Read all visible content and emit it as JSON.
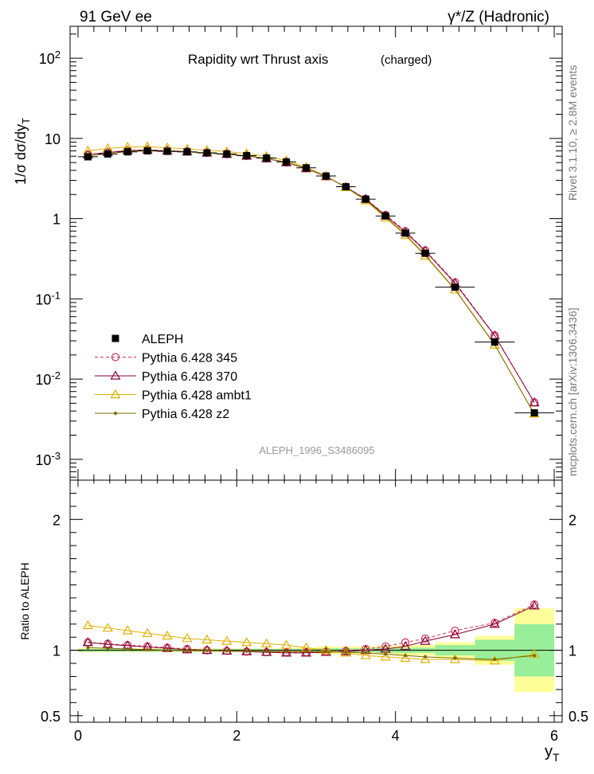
{
  "header": {
    "left": "91 GeV ee",
    "right": "γ*/Z (Hadronic)",
    "side_rivet": "Rivet 3.1.10, ≥ 2.8M events",
    "side_mcplots": "mcplots.cern.ch [arXiv:1306.3436]"
  },
  "plot": {
    "title": "Rapidity wrt Thrust axis",
    "subtitle": "(charged)",
    "watermark": "ALEPH_1996_S3486095",
    "ylabel_main": "1/σ dσ/dy_T",
    "ylabel_ratio": "Ratio to ALEPH",
    "xlabel": "y_T"
  },
  "axes": {
    "x_range": [
      -0.1,
      6.1
    ],
    "x_ticks": [
      "0",
      "2",
      "4",
      "6"
    ],
    "main_y_log_range": [
      0.00055,
      250
    ],
    "main_y_ticks": [
      "10^-3",
      "10^-2",
      "10^-1",
      "1",
      "10",
      "10^2"
    ],
    "ratio_y_range": [
      0.45,
      2.3
    ],
    "ratio_y_ticks": [
      "0.5",
      "1",
      "2"
    ]
  },
  "legend": {
    "entries": [
      {
        "label": "ALEPH",
        "marker": "filled-square",
        "color": "#000000"
      },
      {
        "label": "Pythia 6.428 345",
        "marker": "open-circle-dashed",
        "color": "#cc3355"
      },
      {
        "label": "Pythia 6.428 370",
        "marker": "open-triangle",
        "color": "#880033"
      },
      {
        "label": "Pythia 6.428 ambt1",
        "marker": "open-triangle",
        "color": "#e0b000"
      },
      {
        "label": "Pythia 6.428 z2",
        "marker": "small-dot",
        "color": "#7a6a00"
      }
    ]
  },
  "chart_data": {
    "type": "line",
    "log_y": true,
    "x": [
      0.125,
      0.375,
      0.625,
      0.875,
      1.125,
      1.375,
      1.625,
      1.875,
      2.125,
      2.375,
      2.625,
      2.875,
      3.125,
      3.375,
      3.625,
      3.875,
      4.125,
      4.375,
      4.75,
      5.25,
      5.75
    ],
    "bin_edges": [
      0,
      0.25,
      0.5,
      0.75,
      1.0,
      1.25,
      1.5,
      1.75,
      2.0,
      2.25,
      2.5,
      2.75,
      3.0,
      3.25,
      3.5,
      3.75,
      4.0,
      4.25,
      4.5,
      5.0,
      5.5,
      6.0
    ],
    "reference": {
      "name": "ALEPH",
      "values": [
        5.9,
        6.4,
        6.8,
        7.0,
        6.9,
        6.8,
        6.6,
        6.4,
        6.1,
        5.7,
        5.1,
        4.3,
        3.4,
        2.5,
        1.75,
        1.08,
        0.66,
        0.37,
        0.14,
        0.029,
        0.0038
      ],
      "band_inner": [
        0.01,
        0.01,
        0.01,
        0.01,
        0.01,
        0.01,
        0.01,
        0.01,
        0.01,
        0.01,
        0.01,
        0.01,
        0.015,
        0.015,
        0.015,
        0.02,
        0.02,
        0.02,
        0.04,
        0.08,
        0.2
      ],
      "band_outer": [
        0.015,
        0.015,
        0.015,
        0.015,
        0.015,
        0.015,
        0.015,
        0.015,
        0.015,
        0.015,
        0.015,
        0.02,
        0.03,
        0.03,
        0.03,
        0.035,
        0.04,
        0.04,
        0.06,
        0.11,
        0.32
      ]
    },
    "series": [
      {
        "name": "Pythia 6.428 345",
        "ratio": [
          1.06,
          1.05,
          1.04,
          1.03,
          1.02,
          1.01,
          1.0,
          0.995,
          0.99,
          0.985,
          0.985,
          0.985,
          0.99,
          0.995,
          1.01,
          1.03,
          1.06,
          1.09,
          1.15,
          1.21,
          1.35
        ]
      },
      {
        "name": "Pythia 6.428 370",
        "ratio": [
          1.06,
          1.045,
          1.035,
          1.025,
          1.015,
          1.005,
          1.0,
          0.995,
          0.99,
          0.985,
          0.98,
          0.98,
          0.985,
          0.99,
          1.0,
          1.01,
          1.03,
          1.07,
          1.12,
          1.2,
          1.34
        ]
      },
      {
        "name": "Pythia 6.428 ambt1",
        "ratio": [
          1.19,
          1.17,
          1.15,
          1.13,
          1.11,
          1.09,
          1.08,
          1.07,
          1.06,
          1.05,
          1.04,
          1.02,
          1.0,
          0.98,
          0.96,
          0.95,
          0.94,
          0.93,
          0.93,
          0.92,
          0.97
        ]
      },
      {
        "name": "Pythia 6.428 z2",
        "ratio": [
          1.02,
          1.015,
          1.01,
          1.005,
          1.0,
          0.998,
          0.996,
          0.994,
          0.992,
          0.99,
          0.99,
          0.99,
          0.99,
          0.985,
          0.98,
          0.97,
          0.96,
          0.95,
          0.94,
          0.93,
          0.96
        ]
      }
    ]
  }
}
